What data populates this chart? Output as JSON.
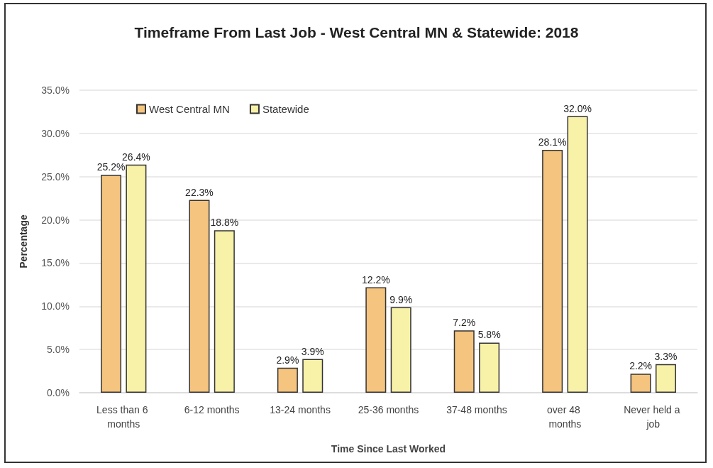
{
  "chart_data": {
    "type": "bar",
    "title": "Timeframe From Last Job - West Central MN & Statewide: 2018",
    "xlabel": "Time Since Last Worked",
    "ylabel": "Percentage",
    "categories": [
      "Less than 6 months",
      "6-12 months",
      "13-24 months",
      "25-36 months",
      "37-48 months",
      "over 48 months",
      "Never held a job"
    ],
    "series": [
      {
        "name": "West Central MN",
        "color": "#f5c47e",
        "values": [
          25.2,
          22.3,
          2.9,
          12.2,
          7.2,
          28.1,
          2.2
        ],
        "value_labels": [
          "25.2%",
          "22.3%",
          "2.9%",
          "12.2%",
          "7.2%",
          "28.1%",
          "2.2%"
        ]
      },
      {
        "name": "Statewide",
        "color": "#f8f1a8",
        "values": [
          26.4,
          18.8,
          3.9,
          9.9,
          5.8,
          32.0,
          3.3
        ],
        "value_labels": [
          "26.4%",
          "18.8%",
          "3.9%",
          "9.9%",
          "5.8%",
          "32.0%",
          "3.3%"
        ]
      }
    ],
    "ylim": [
      0,
      35
    ],
    "yticks": [
      {
        "value": 0,
        "label": "0.0%"
      },
      {
        "value": 5,
        "label": "5.0%"
      },
      {
        "value": 10,
        "label": "10.0%"
      },
      {
        "value": 15,
        "label": "15.0%"
      },
      {
        "value": 20,
        "label": "20.0%"
      },
      {
        "value": 25,
        "label": "25.0%"
      },
      {
        "value": 30,
        "label": "30.0%"
      },
      {
        "value": 35,
        "label": "35.0%"
      }
    ],
    "grid": "y",
    "legend": "top left"
  }
}
